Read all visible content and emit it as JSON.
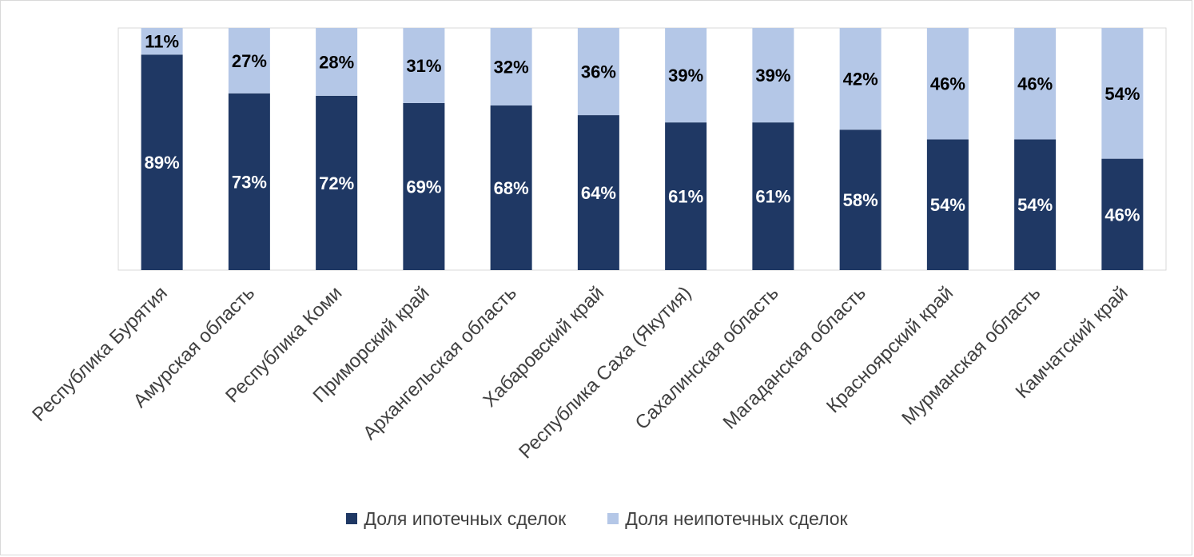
{
  "chart_data": {
    "type": "bar",
    "stacked": true,
    "percent_stacked": true,
    "categories": [
      "Республика Бурятия",
      "Амурская область",
      "Республика Коми",
      "Приморский край",
      "Архангельская область",
      "Хабаровский край",
      "Республика Саха (Якутия)",
      "Сахалинская область",
      "Магаданская область",
      "Красноярский край",
      "Мурманская область",
      "Камчатский край"
    ],
    "series": [
      {
        "name": "Доля ипотечных сделок",
        "color": "#1f3864",
        "label_color": "#ffffff",
        "values": [
          89,
          73,
          72,
          69,
          68,
          64,
          61,
          61,
          58,
          54,
          54,
          46
        ],
        "labels": [
          "89%",
          "73%",
          "72%",
          "69%",
          "68%",
          "64%",
          "61%",
          "61%",
          "58%",
          "54%",
          "54%",
          "46%"
        ]
      },
      {
        "name": "Доля неипотечных сделок",
        "color": "#b4c7e7",
        "label_color": "#000000",
        "values": [
          11,
          27,
          28,
          31,
          32,
          36,
          39,
          39,
          42,
          46,
          46,
          54
        ],
        "labels": [
          "11%",
          "27%",
          "28%",
          "31%",
          "32%",
          "36%",
          "39%",
          "39%",
          "42%",
          "46%",
          "46%",
          "54%"
        ]
      }
    ],
    "ylim": [
      0,
      100
    ],
    "title": "",
    "xlabel": "",
    "ylabel": "",
    "grid": false,
    "legend_position": "bottom"
  },
  "legend": {
    "items": [
      {
        "label": "Доля ипотечных сделок",
        "color": "#1f3864"
      },
      {
        "label": "Доля неипотечных сделок",
        "color": "#b4c7e7"
      }
    ]
  }
}
